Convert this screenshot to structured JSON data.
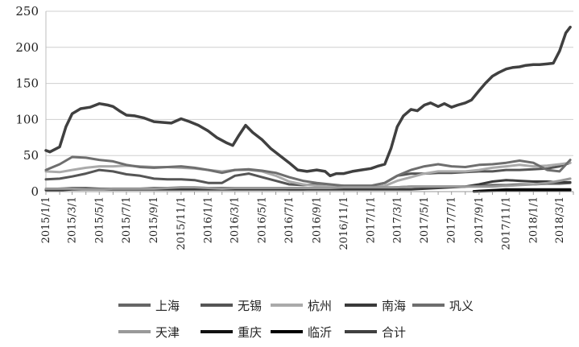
{
  "chart_data": {
    "type": "line",
    "ylim": [
      0,
      250
    ],
    "yticks": [
      0,
      50,
      100,
      150,
      200,
      250
    ],
    "xlim": [
      "2015-01-01",
      "2018-04-01"
    ],
    "xtick_labels": [
      "2015/1/1",
      "2015/3/1",
      "2015/5/1",
      "2015/7/1",
      "2015/9/1",
      "2015/11/1",
      "2016/1/1",
      "2016/3/1",
      "2016/5/1",
      "2016/7/1",
      "2016/9/1",
      "2016/11/1",
      "2017/1/1",
      "2017/3/1",
      "2017/5/1",
      "2017/7/1",
      "2017/9/1",
      "2017/11/1",
      "2018/1/1",
      "2018/3/1"
    ],
    "xtick_dates": [
      "2015-01-01",
      "2015-03-01",
      "2015-05-01",
      "2015-07-01",
      "2015-09-01",
      "2015-11-01",
      "2016-01-01",
      "2016-03-01",
      "2016-05-01",
      "2016-07-01",
      "2016-09-01",
      "2016-11-01",
      "2017-01-01",
      "2017-03-01",
      "2017-05-01",
      "2017-07-01",
      "2017-09-01",
      "2017-11-01",
      "2018-01-01",
      "2018-03-01"
    ],
    "grid": "horizontal",
    "legend_position": "bottom",
    "series": [
      {
        "name": "上海",
        "color": "#666666",
        "width": 3,
        "x": [
          "2015-01-01",
          "2015-02-01",
          "2015-03-01",
          "2015-04-01",
          "2015-05-01",
          "2015-06-01",
          "2015-07-01",
          "2015-08-01",
          "2015-09-01",
          "2015-10-01",
          "2015-11-01",
          "2015-12-01",
          "2016-01-01",
          "2016-02-01",
          "2016-03-01",
          "2016-04-01",
          "2016-05-01",
          "2016-06-01",
          "2016-07-01",
          "2016-08-01",
          "2016-09-01",
          "2016-10-01",
          "2016-11-01",
          "2016-12-01",
          "2017-01-01",
          "2017-02-01",
          "2017-03-01",
          "2017-04-01",
          "2017-05-01",
          "2017-06-01",
          "2017-07-01",
          "2017-08-01",
          "2017-09-01",
          "2017-10-01",
          "2017-11-01",
          "2017-12-01",
          "2018-01-01",
          "2018-02-01",
          "2018-03-01",
          "2018-03-25"
        ],
        "y": [
          3,
          4,
          5,
          5,
          4,
          4,
          4,
          4,
          5,
          5,
          5,
          5,
          5,
          5,
          5,
          5,
          4,
          4,
          3,
          3,
          4,
          4,
          4,
          4,
          4,
          5,
          6,
          7,
          7,
          7,
          7,
          7,
          8,
          9,
          9,
          10,
          10,
          11,
          11,
          12
        ]
      },
      {
        "name": "无锡",
        "color": "#555555",
        "width": 3,
        "x": [
          "2015-01-01",
          "2015-02-01",
          "2015-03-01",
          "2015-04-01",
          "2015-05-01",
          "2015-06-01",
          "2015-07-01",
          "2015-08-01",
          "2015-09-01",
          "2015-10-01",
          "2015-11-01",
          "2015-12-01",
          "2016-01-01",
          "2016-02-01",
          "2016-03-01",
          "2016-04-01",
          "2016-05-01",
          "2016-06-01",
          "2016-07-01",
          "2016-08-01",
          "2016-09-01",
          "2016-10-01",
          "2016-11-01",
          "2016-12-01",
          "2017-01-01",
          "2017-02-01",
          "2017-03-01",
          "2017-04-01",
          "2017-05-01",
          "2017-06-01",
          "2017-07-01",
          "2017-08-01",
          "2017-09-01",
          "2017-10-01",
          "2017-11-01",
          "2017-12-01",
          "2018-01-01",
          "2018-02-01",
          "2018-03-01",
          "2018-03-25"
        ],
        "y": [
          17,
          18,
          21,
          25,
          30,
          28,
          24,
          22,
          18,
          17,
          17,
          16,
          12,
          12,
          22,
          25,
          20,
          15,
          10,
          9,
          10,
          9,
          8,
          8,
          8,
          12,
          22,
          25,
          25,
          26,
          26,
          27,
          28,
          28,
          30,
          30,
          31,
          32,
          35,
          40
        ]
      },
      {
        "name": "杭州",
        "color": "#aaaaaa",
        "width": 3,
        "x": [
          "2015-01-01",
          "2015-02-01",
          "2015-03-01",
          "2015-04-01",
          "2015-05-01",
          "2015-06-01",
          "2015-07-01",
          "2015-08-01",
          "2015-09-01",
          "2015-10-01",
          "2015-11-01",
          "2015-12-01",
          "2016-01-01",
          "2016-02-01",
          "2016-03-01",
          "2016-04-01",
          "2016-05-01",
          "2016-06-01",
          "2016-07-01",
          "2016-08-01",
          "2016-09-01",
          "2016-10-01",
          "2016-11-01",
          "2016-12-01",
          "2017-01-01",
          "2017-02-01",
          "2017-03-01",
          "2017-04-01",
          "2017-05-01",
          "2017-06-01",
          "2017-07-01",
          "2017-08-01",
          "2017-09-01",
          "2017-10-01",
          "2017-11-01",
          "2017-12-01",
          "2018-01-01",
          "2018-02-01",
          "2018-03-01",
          "2018-03-25"
        ],
        "y": [
          28,
          27,
          30,
          33,
          35,
          35,
          36,
          35,
          34,
          34,
          33,
          32,
          30,
          28,
          30,
          30,
          28,
          22,
          14,
          10,
          8,
          7,
          6,
          6,
          6,
          8,
          15,
          20,
          25,
          28,
          28,
          28,
          30,
          33,
          35,
          37,
          35,
          36,
          38,
          40
        ]
      },
      {
        "name": "南海",
        "color": "#3a3a3a",
        "width": 3,
        "x": [
          "2015-01-01",
          "2015-02-01",
          "2015-03-01",
          "2015-04-01",
          "2015-05-01",
          "2015-06-01",
          "2015-07-01",
          "2015-08-01",
          "2015-09-01",
          "2015-10-01",
          "2015-11-01",
          "2015-12-01",
          "2016-01-01",
          "2016-02-01",
          "2016-03-01",
          "2016-04-01",
          "2016-05-01",
          "2016-06-01",
          "2016-07-01",
          "2016-08-01",
          "2016-09-01",
          "2016-10-01",
          "2016-11-01",
          "2016-12-01",
          "2017-01-01",
          "2017-02-01",
          "2017-03-01",
          "2017-04-01",
          "2017-05-01",
          "2017-06-01",
          "2017-07-01",
          "2017-08-01",
          "2017-09-01",
          "2017-10-01",
          "2017-11-01",
          "2017-12-01",
          "2018-01-01",
          "2018-02-01",
          "2018-03-01",
          "2018-03-25"
        ],
        "y": [
          2,
          2,
          3,
          3,
          3,
          3,
          3,
          3,
          3,
          3,
          3,
          3,
          3,
          3,
          3,
          3,
          3,
          3,
          3,
          3,
          3,
          3,
          3,
          3,
          3,
          3,
          3,
          3,
          4,
          5,
          6,
          7,
          10,
          14,
          16,
          15,
          14,
          14,
          13,
          13
        ]
      },
      {
        "name": "巩义",
        "color": "#6e6e6e",
        "width": 3,
        "x": [
          "2015-01-01",
          "2015-02-01",
          "2015-03-01",
          "2015-04-01",
          "2015-05-01",
          "2015-06-01",
          "2015-07-01",
          "2015-08-01",
          "2015-09-01",
          "2015-10-01",
          "2015-11-01",
          "2015-12-01",
          "2016-01-01",
          "2016-02-01",
          "2016-03-01",
          "2016-04-01",
          "2016-05-01",
          "2016-06-01",
          "2016-07-01",
          "2016-08-01",
          "2016-09-01",
          "2016-10-01",
          "2016-11-01",
          "2016-12-01",
          "2017-01-01",
          "2017-02-01",
          "2017-03-01",
          "2017-04-01",
          "2017-05-01",
          "2017-06-01",
          "2017-07-01",
          "2017-08-01",
          "2017-09-01",
          "2017-10-01",
          "2017-11-01",
          "2017-12-01",
          "2018-01-01",
          "2018-02-01",
          "2018-03-01",
          "2018-03-25"
        ],
        "y": [
          30,
          38,
          48,
          47,
          44,
          42,
          37,
          34,
          33,
          34,
          35,
          33,
          30,
          26,
          30,
          31,
          29,
          26,
          20,
          15,
          12,
          10,
          8,
          8,
          8,
          12,
          22,
          30,
          35,
          38,
          35,
          34,
          37,
          38,
          40,
          43,
          40,
          30,
          28,
          44
        ]
      },
      {
        "name": "天津",
        "color": "#999999",
        "width": 3,
        "x": [
          "2015-01-01",
          "2015-02-01",
          "2015-03-01",
          "2015-04-01",
          "2015-05-01",
          "2015-06-01",
          "2015-07-01",
          "2015-08-01",
          "2015-09-01",
          "2015-10-01",
          "2015-11-01",
          "2015-12-01",
          "2016-01-01",
          "2016-02-01",
          "2016-03-01",
          "2016-04-01",
          "2016-05-01",
          "2016-06-01",
          "2016-07-01",
          "2016-08-01",
          "2016-09-01",
          "2016-10-01",
          "2016-11-01",
          "2016-12-01",
          "2017-01-01",
          "2017-02-01",
          "2017-03-01",
          "2017-04-01",
          "2017-05-01",
          "2017-06-01",
          "2017-07-01",
          "2017-08-01",
          "2017-09-01",
          "2017-10-01",
          "2017-11-01",
          "2017-12-01",
          "2018-01-01",
          "2018-02-01",
          "2018-03-01",
          "2018-03-25"
        ],
        "y": [
          4,
          4,
          4,
          3,
          3,
          4,
          4,
          4,
          4,
          5,
          6,
          6,
          5,
          4,
          5,
          5,
          5,
          5,
          5,
          5,
          5,
          5,
          6,
          6,
          6,
          6,
          6,
          7,
          7,
          7,
          7,
          7,
          7,
          7,
          8,
          9,
          10,
          12,
          15,
          18
        ]
      },
      {
        "name": "重庆",
        "color": "#111111",
        "width": 3,
        "x": [
          "2017-08-20",
          "2017-09-01",
          "2017-10-01",
          "2017-11-01",
          "2017-12-01",
          "2018-01-01",
          "2018-02-01",
          "2018-03-01",
          "2018-03-25"
        ],
        "y": [
          0.5,
          1,
          2,
          3,
          3,
          3,
          3,
          3,
          3
        ]
      },
      {
        "name": "临沂",
        "color": "#000000",
        "width": 3,
        "x": [
          "2017-08-20",
          "2017-09-01",
          "2017-10-01",
          "2017-11-01",
          "2017-12-01",
          "2018-01-01",
          "2018-02-01",
          "2018-03-01",
          "2018-03-25"
        ],
        "y": [
          0.3,
          0.5,
          1,
          1.5,
          2,
          2,
          2,
          2,
          2
        ]
      },
      {
        "name": "合计",
        "color": "#404040",
        "width": 3.5,
        "x": [
          "2015-01-01",
          "2015-01-10",
          "2015-02-01",
          "2015-02-15",
          "2015-03-01",
          "2015-03-20",
          "2015-04-10",
          "2015-05-01",
          "2015-05-20",
          "2015-06-01",
          "2015-06-15",
          "2015-07-01",
          "2015-07-20",
          "2015-08-10",
          "2015-09-01",
          "2015-09-20",
          "2015-10-10",
          "2015-11-01",
          "2015-11-20",
          "2015-12-10",
          "2016-01-01",
          "2016-01-20",
          "2016-02-10",
          "2016-02-25",
          "2016-03-10",
          "2016-03-25",
          "2016-04-10",
          "2016-05-01",
          "2016-05-20",
          "2016-06-10",
          "2016-07-01",
          "2016-07-20",
          "2016-08-10",
          "2016-09-01",
          "2016-09-20",
          "2016-10-01",
          "2016-10-15",
          "2016-11-01",
          "2016-11-20",
          "2016-12-10",
          "2017-01-01",
          "2017-01-15",
          "2017-02-01",
          "2017-02-15",
          "2017-03-01",
          "2017-03-15",
          "2017-04-01",
          "2017-04-15",
          "2017-05-01",
          "2017-05-15",
          "2017-06-01",
          "2017-06-15",
          "2017-07-01",
          "2017-07-15",
          "2017-08-01",
          "2017-08-15",
          "2017-09-01",
          "2017-09-15",
          "2017-10-01",
          "2017-10-15",
          "2017-11-01",
          "2017-11-15",
          "2017-12-01",
          "2017-12-15",
          "2018-01-01",
          "2018-01-15",
          "2018-02-01",
          "2018-02-15",
          "2018-03-01",
          "2018-03-15",
          "2018-03-25"
        ],
        "y": [
          57,
          55,
          62,
          90,
          108,
          115,
          117,
          122,
          120,
          118,
          112,
          106,
          105,
          102,
          97,
          96,
          95,
          101,
          97,
          92,
          84,
          75,
          68,
          64,
          78,
          92,
          82,
          72,
          60,
          50,
          40,
          30,
          28,
          30,
          28,
          22,
          25,
          25,
          28,
          30,
          32,
          35,
          38,
          60,
          90,
          105,
          114,
          112,
          120,
          123,
          118,
          122,
          117,
          120,
          123,
          127,
          140,
          150,
          160,
          165,
          170,
          172,
          173,
          175,
          176,
          176,
          177,
          178,
          195,
          220,
          228
        ]
      }
    ]
  }
}
